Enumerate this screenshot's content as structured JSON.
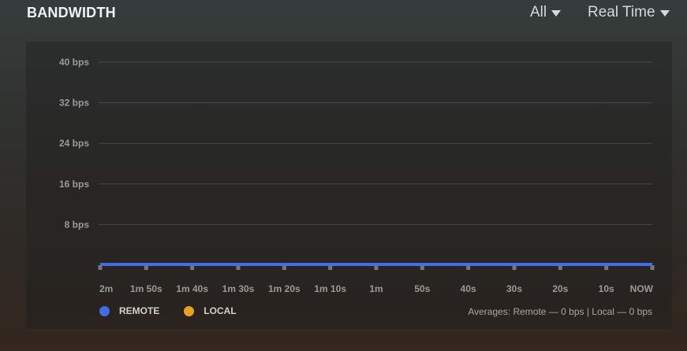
{
  "header": {
    "title": "BANDWIDTH",
    "filter_label": "All",
    "range_label": "Real Time"
  },
  "colors": {
    "remote": "#3f6ee6",
    "local": "#e8a021",
    "grid": "#474a46",
    "tick": "#9a9a9a"
  },
  "chart_data": {
    "type": "line",
    "title": "BANDWIDTH",
    "ylabel": "",
    "xlabel": "",
    "ylim": [
      0,
      40
    ],
    "y_ticks": [
      {
        "value": 40,
        "label": "40 bps"
      },
      {
        "value": 32,
        "label": "32 bps"
      },
      {
        "value": 24,
        "label": "24 bps"
      },
      {
        "value": 16,
        "label": "16 bps"
      },
      {
        "value": 8,
        "label": "8 bps"
      }
    ],
    "categories": [
      "2m",
      "1m 50s",
      "1m 40s",
      "1m 30s",
      "1m 20s",
      "1m 10s",
      "1m",
      "50s",
      "40s",
      "30s",
      "20s",
      "10s",
      "NOW"
    ],
    "series": [
      {
        "name": "REMOTE",
        "color": "#3f6ee6",
        "values": [
          0,
          0,
          0,
          0,
          0,
          0,
          0,
          0,
          0,
          0,
          0,
          0,
          0
        ]
      },
      {
        "name": "LOCAL",
        "color": "#e8a021",
        "values": [
          0,
          0,
          0,
          0,
          0,
          0,
          0,
          0,
          0,
          0,
          0,
          0,
          0
        ]
      }
    ]
  },
  "legend": {
    "remote_label": "REMOTE",
    "local_label": "LOCAL"
  },
  "averages_text": "Averages: Remote — 0 bps | Local — 0 bps"
}
